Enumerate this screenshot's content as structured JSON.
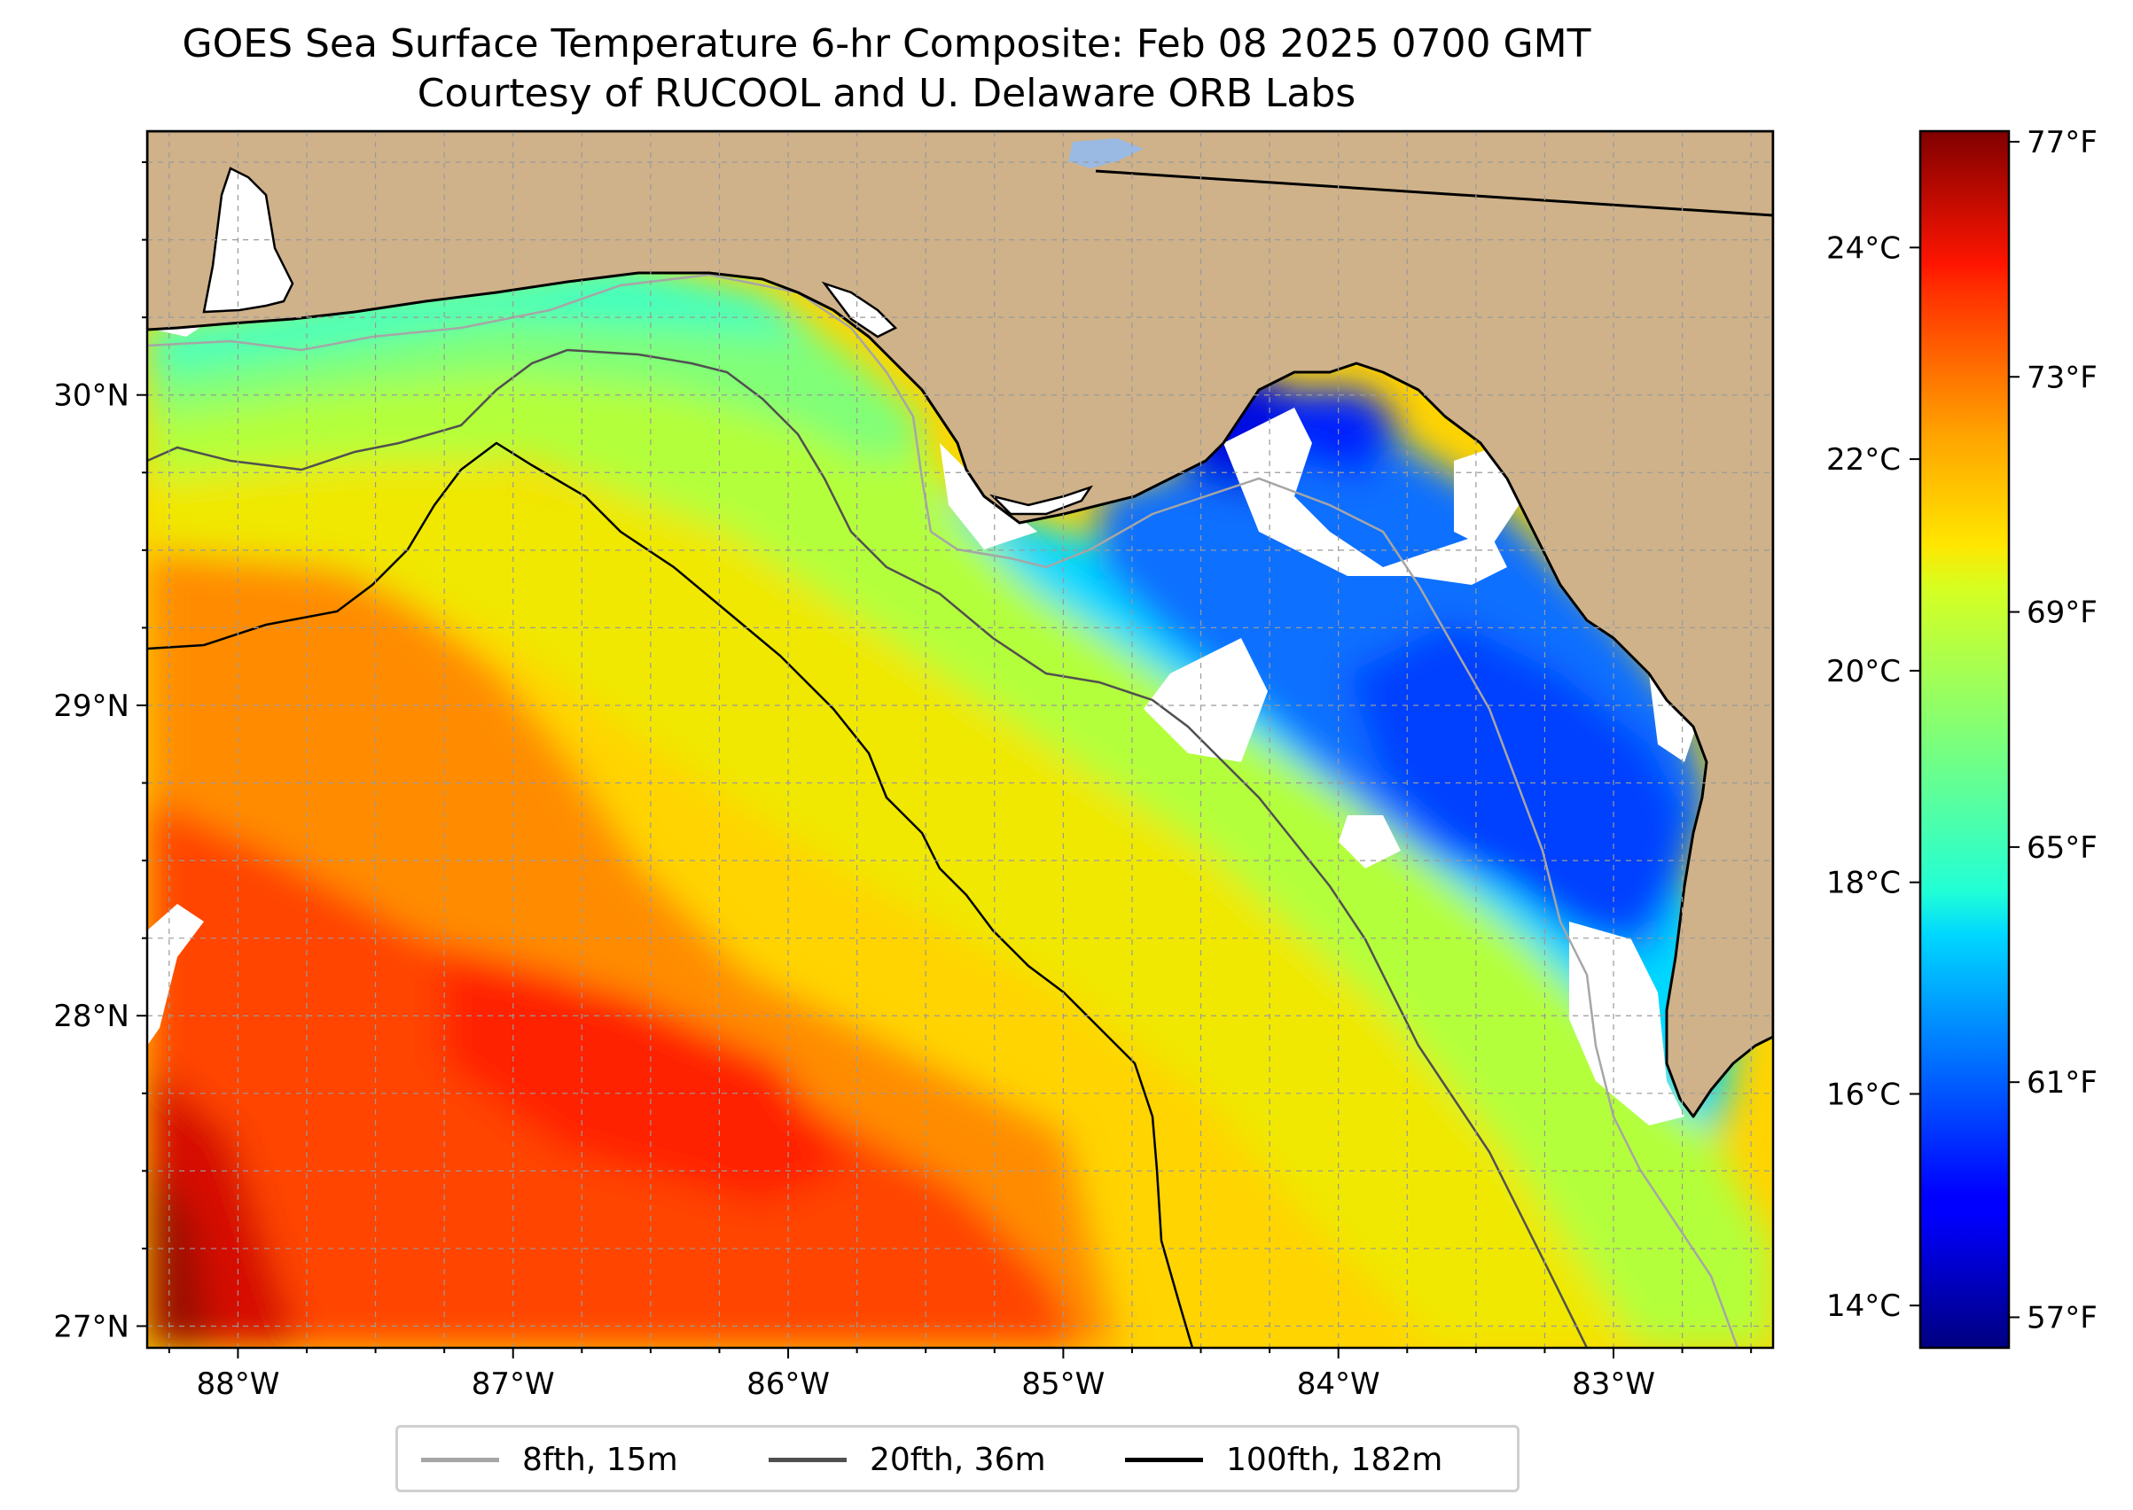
{
  "title": {
    "line1": "GOES Sea Surface Temperature 6-hr Composite: Feb 08 2025 0700 GMT",
    "line2": "Courtesy of RUCOOL and U. Delaware ORB Labs"
  },
  "map": {
    "lon_range": [
      -88.33,
      -82.42
    ],
    "lat_range": [
      26.93,
      30.85
    ],
    "lon_ticks": [
      {
        "value": -88,
        "label": "88°W"
      },
      {
        "value": -87,
        "label": "87°W"
      },
      {
        "value": -86,
        "label": "86°W"
      },
      {
        "value": -85,
        "label": "85°W"
      },
      {
        "value": -84,
        "label": "84°W"
      },
      {
        "value": -83,
        "label": "83°W"
      }
    ],
    "lat_ticks": [
      {
        "value": 27,
        "label": "27°N"
      },
      {
        "value": 28,
        "label": "28°N"
      },
      {
        "value": 29,
        "label": "29°N"
      },
      {
        "value": 30,
        "label": "30°N"
      }
    ],
    "gridlines": "dashed, every 0.25°",
    "colors": {
      "land": "#cfb28a",
      "no_data": "#ffffff",
      "lake": "#9ab9e3",
      "coastline": "#000000",
      "grid": "#9a9a9a"
    }
  },
  "colorbar": {
    "colormap": "jet",
    "celsius_range": [
      13.6,
      25.1
    ],
    "celsius_ticks": [
      {
        "value": 14,
        "label": "14°C"
      },
      {
        "value": 16,
        "label": "16°C"
      },
      {
        "value": 18,
        "label": "18°C"
      },
      {
        "value": 20,
        "label": "20°C"
      },
      {
        "value": 22,
        "label": "22°C"
      },
      {
        "value": 24,
        "label": "24°C"
      }
    ],
    "fahrenheit_ticks": [
      {
        "value": 57,
        "label": "57°F"
      },
      {
        "value": 61,
        "label": "61°F"
      },
      {
        "value": 65,
        "label": "65°F"
      },
      {
        "value": 69,
        "label": "69°F"
      },
      {
        "value": 73,
        "label": "73°F"
      },
      {
        "value": 77,
        "label": "77°F"
      }
    ]
  },
  "legend": {
    "items": [
      {
        "label": "8fth, 15m",
        "color": "#a6a6a6"
      },
      {
        "label": "20fth, 36m",
        "color": "#505050"
      },
      {
        "label": "100fth, 182m",
        "color": "#000000"
      }
    ]
  }
}
